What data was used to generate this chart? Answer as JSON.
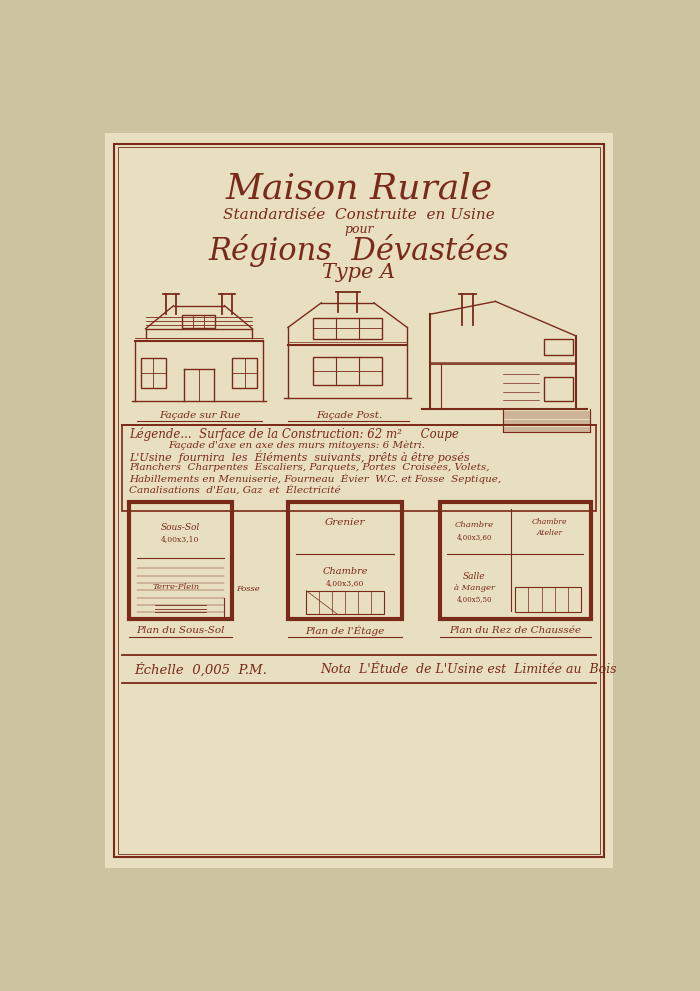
{
  "bg_outer": "#ccc4a0",
  "bg_paper": "#e8dfc0",
  "border_color": "#7a2a1a",
  "text_color": "#7a2a1a",
  "line_color": "#7a2a1a",
  "title1": "Maison Rurale",
  "title2": "Standardisée  Construite  en Usine",
  "title3": "pour",
  "title4": "Régions  Dévastées",
  "title5": "Type A",
  "legend_line1": "Légende...  Surface de la Construction: 62 m²     Coupe",
  "legend_line2": "Façade d'axe en axe des murs mitoyens: 6 Mètri.",
  "legend_line3": "L'Usine  fournira  les  Éléments  suivants, prêts à être posés",
  "legend_line4": "Planchers  Charpentes  Escaliers, Parquets, Portes  Croisées, Volets,",
  "legend_line5": "Habillements en Menuiserie, Fourneau  Évier  W.C. et Fosse  Septique,",
  "legend_line6": "Canalisations  d'Eau, Gaz  et  Électricité",
  "label_facade_sur_rue": "Façade sur Rue",
  "label_facade_post": "Façade Post.",
  "label_plan_sous_sol": "Plan du Sous-Sol",
  "label_plan_etage": "Plan de l'Étage",
  "label_plan_rdc": "Plan du Rez de Chaussée",
  "echelle_text": "Échelle  0,005  P.M.",
  "nota_text": "Nota  L'Étude  de L'Usine est  Limitée au  Bois"
}
